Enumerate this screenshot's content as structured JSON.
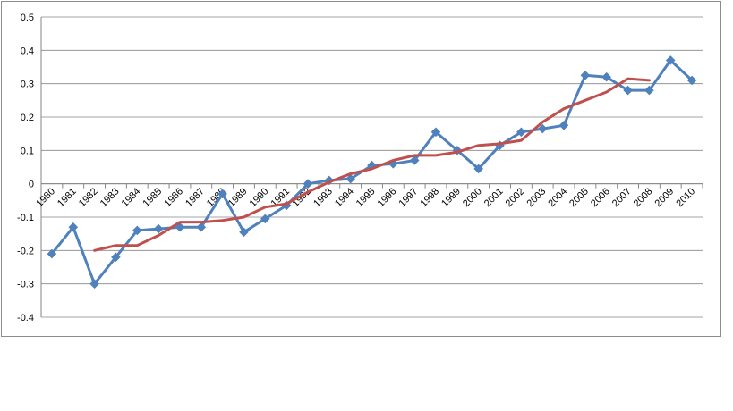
{
  "chart_data": {
    "type": "line",
    "title": "",
    "xlabel": "",
    "ylabel": "",
    "ylim": [
      -0.4,
      0.5
    ],
    "yticks": [
      "0.5",
      "0.4",
      "0.3",
      "0.2",
      "0.1",
      "0",
      "-0.1",
      "-0.2",
      "-0.3",
      "-0.4"
    ],
    "ytick_values": [
      0.5,
      0.4,
      0.3,
      0.2,
      0.1,
      0,
      -0.1,
      -0.2,
      -0.3,
      -0.4
    ],
    "categories": [
      "1980",
      "1981",
      "1982",
      "1983",
      "1984",
      "1985",
      "1986",
      "1987",
      "1988",
      "1989",
      "1990",
      "1991",
      "1992",
      "1993",
      "1994",
      "1995",
      "1996",
      "1997",
      "1998",
      "1999",
      "2000",
      "2001",
      "2002",
      "2003",
      "2004",
      "2005",
      "2006",
      "2007",
      "2008",
      "2009",
      "2010"
    ],
    "grid": true,
    "legend": "none",
    "series": [
      {
        "color": "#4f81bd",
        "marker": "diamond",
        "values": [
          -0.21,
          -0.13,
          -0.3,
          -0.22,
          -0.14,
          -0.135,
          -0.13,
          -0.13,
          -0.03,
          -0.145,
          -0.105,
          -0.065,
          0.0,
          0.01,
          0.015,
          0.055,
          0.06,
          0.07,
          0.155,
          0.1,
          0.045,
          0.115,
          0.155,
          0.165,
          0.175,
          0.325,
          0.32,
          0.28,
          0.28,
          0.37,
          0.31
        ]
      },
      {
        "color": "#c0504d",
        "marker": "none",
        "values": [
          null,
          null,
          -0.2,
          -0.185,
          -0.185,
          -0.155,
          -0.115,
          -0.115,
          -0.11,
          -0.1,
          -0.07,
          -0.06,
          -0.025,
          0.005,
          0.03,
          0.045,
          0.07,
          0.085,
          0.085,
          0.095,
          0.115,
          0.12,
          0.13,
          0.185,
          0.225,
          0.25,
          0.275,
          0.315,
          0.31,
          null,
          null
        ]
      }
    ]
  }
}
